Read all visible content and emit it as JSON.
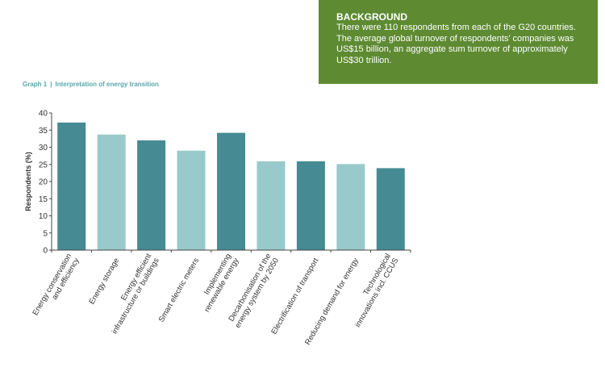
{
  "background": {
    "title": "BACKGROUND",
    "text": "There were 110 respondents from each of the G20 countries. The average global turnover of respondents’ companies was US$15 billion, an aggregate sum turnover of approximately US$30 trillion."
  },
  "graph": {
    "number": "Graph 1",
    "separator": "|",
    "title": "Interpretation of energy transition"
  },
  "colors": {
    "dark": "#468a93",
    "light": "#98cacb",
    "green": "#5e8a32"
  },
  "chart_data": {
    "type": "bar",
    "title": "Interpretation of energy transition",
    "xlabel": "",
    "ylabel": "Respondents (%)",
    "ylim": [
      0,
      40
    ],
    "yticks": [
      0,
      5,
      10,
      15,
      20,
      25,
      30,
      35,
      40
    ],
    "grid": false,
    "categories": [
      [
        "Energy conservation",
        "and efficiency"
      ],
      [
        "Energy storage"
      ],
      [
        "Energy efficient",
        "infrastructure or buildings"
      ],
      [
        "Smart electric meters"
      ],
      [
        "Implementing",
        "renewable energy"
      ],
      [
        "Decarbonisation of the",
        "energy system by 2050"
      ],
      [
        "Electrification of transport"
      ],
      [
        "Reducing demand for energy"
      ],
      [
        "Technological",
        "innovations incl. CCUS"
      ]
    ],
    "values": [
      37.2,
      33.7,
      32.0,
      29.0,
      34.2,
      25.9,
      25.9,
      25.1,
      23.9
    ]
  }
}
